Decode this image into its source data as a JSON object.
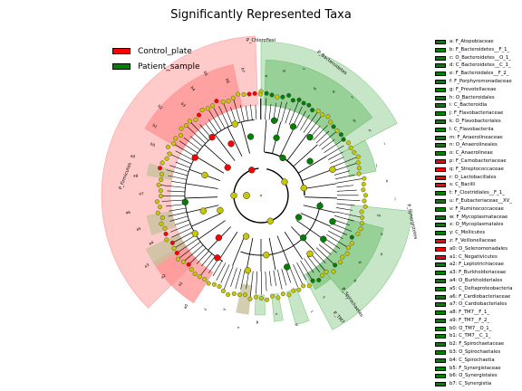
{
  "title": "Significantly Represented Taxa",
  "colors": {
    "control": "#ff0000",
    "patient": "#008000",
    "nonsig": "#c8c800",
    "control_shade": "#ff8a8a",
    "patient_shade": "#5fb85f",
    "grey_shade": "#c9c29e"
  },
  "legend": [
    {
      "label": "Control_plate",
      "color": "#ff0000"
    },
    {
      "label": "Patient_sample",
      "color": "#008000"
    }
  ],
  "clade_list": [
    {
      "label": "a: F_Atopobiaceae",
      "group": "patient"
    },
    {
      "label": "b: F_Bacteroidetes__F_1_",
      "group": "patient"
    },
    {
      "label": "c: O_Bacteroidetes__O_1_",
      "group": "patient"
    },
    {
      "label": "d: C_Bacteroidetes__C_1_",
      "group": "patient"
    },
    {
      "label": "e: F_Bacteroidales__F_2_",
      "group": "patient"
    },
    {
      "label": "f: F_Porphyromonadaceae",
      "group": "patient"
    },
    {
      "label": "g: F_Prevotellaceae",
      "group": "patient"
    },
    {
      "label": "h: O_Bacteroidales",
      "group": "patient"
    },
    {
      "label": "i: C_Bacteroidia",
      "group": "patient"
    },
    {
      "label": "j: F_Flavobacteriaceae",
      "group": "patient"
    },
    {
      "label": "k: O_Flavobacteriales",
      "group": "patient"
    },
    {
      "label": "l: C_Flavobacteriia",
      "group": "patient"
    },
    {
      "label": "m: F_Anaerolineaceae",
      "group": "patient"
    },
    {
      "label": "n: O_Anaerolineales",
      "group": "patient"
    },
    {
      "label": "o: C_Anaerolineae",
      "group": "patient"
    },
    {
      "label": "p: F_Carnobacteriaceae",
      "group": "control"
    },
    {
      "label": "q: F_Streptococcaceae",
      "group": "control"
    },
    {
      "label": "r: O_Lactobacillales",
      "group": "control"
    },
    {
      "label": "s: C_Bacilli",
      "group": "control"
    },
    {
      "label": "t: F_Clostridiales__F_1_",
      "group": "patient"
    },
    {
      "label": "u: F_Eubacteriaceae__XV_",
      "group": "patient"
    },
    {
      "label": "v: F_Ruminococcaceae",
      "group": "patient"
    },
    {
      "label": "w: F_Mycoplasmataceae",
      "group": "patient"
    },
    {
      "label": "x: O_Mycoplasmatales",
      "group": "patient"
    },
    {
      "label": "y: C_Mollicutes",
      "group": "patient"
    },
    {
      "label": "z: F_Veillonellaceae",
      "group": "control"
    },
    {
      "label": "a0: O_Selenomonadales",
      "group": "control"
    },
    {
      "label": "a1: C_Negativicutes",
      "group": "control"
    },
    {
      "label": "a2: F_Leptotrichiaceae",
      "group": "patient"
    },
    {
      "label": "a3: F_Burkholderiaceae",
      "group": "patient"
    },
    {
      "label": "a4: O_Burkholderiales",
      "group": "patient"
    },
    {
      "label": "a5: C_Deltaproteobacteria",
      "group": "patient"
    },
    {
      "label": "a6: F_Cardiobacteriaceae",
      "group": "patient"
    },
    {
      "label": "a7: O_Cardiobacteriales",
      "group": "patient"
    },
    {
      "label": "a8: F_TM7__F_1_",
      "group": "patient"
    },
    {
      "label": "a9: F_TM7__F_2_",
      "group": "patient"
    },
    {
      "label": "b0: O_TM7__O_1_",
      "group": "patient"
    },
    {
      "label": "b1: C_TM7__C_1_",
      "group": "patient"
    },
    {
      "label": "b2: F_Spirochaetaceae",
      "group": "patient"
    },
    {
      "label": "b3: O_Spirochaetales",
      "group": "patient"
    },
    {
      "label": "b4: C_Spirochaetia",
      "group": "patient"
    },
    {
      "label": "b5: F_Synergistaceae",
      "group": "patient"
    },
    {
      "label": "b6: O_Synergistales",
      "group": "patient"
    },
    {
      "label": "b7: C_Synergistia",
      "group": "patient"
    }
  ],
  "ring_labels": [
    {
      "text": "P_Chloroflexi"
    },
    {
      "text": "P_Bacteroidetes"
    },
    {
      "text": "P_Firmicutes"
    },
    {
      "text": "P_Synergistetes"
    },
    {
      "text": "P_Spirochaetes"
    },
    {
      "text": "P_TM7"
    }
  ],
  "letter_labels": [
    "a",
    "b",
    "c",
    "d",
    "e",
    "f",
    "g",
    "h",
    "i",
    "j",
    "k",
    "l",
    "m",
    "n",
    "o",
    "p",
    "q",
    "r",
    "s",
    "t",
    "u",
    "v",
    "w",
    "x",
    "y",
    "z",
    "a0",
    "a1",
    "a2",
    "a3",
    "a4",
    "a5",
    "a6",
    "a7",
    "a8",
    "a9",
    "b0",
    "b1",
    "b2",
    "b3",
    "b4",
    "b5",
    "b6",
    "b7"
  ]
}
